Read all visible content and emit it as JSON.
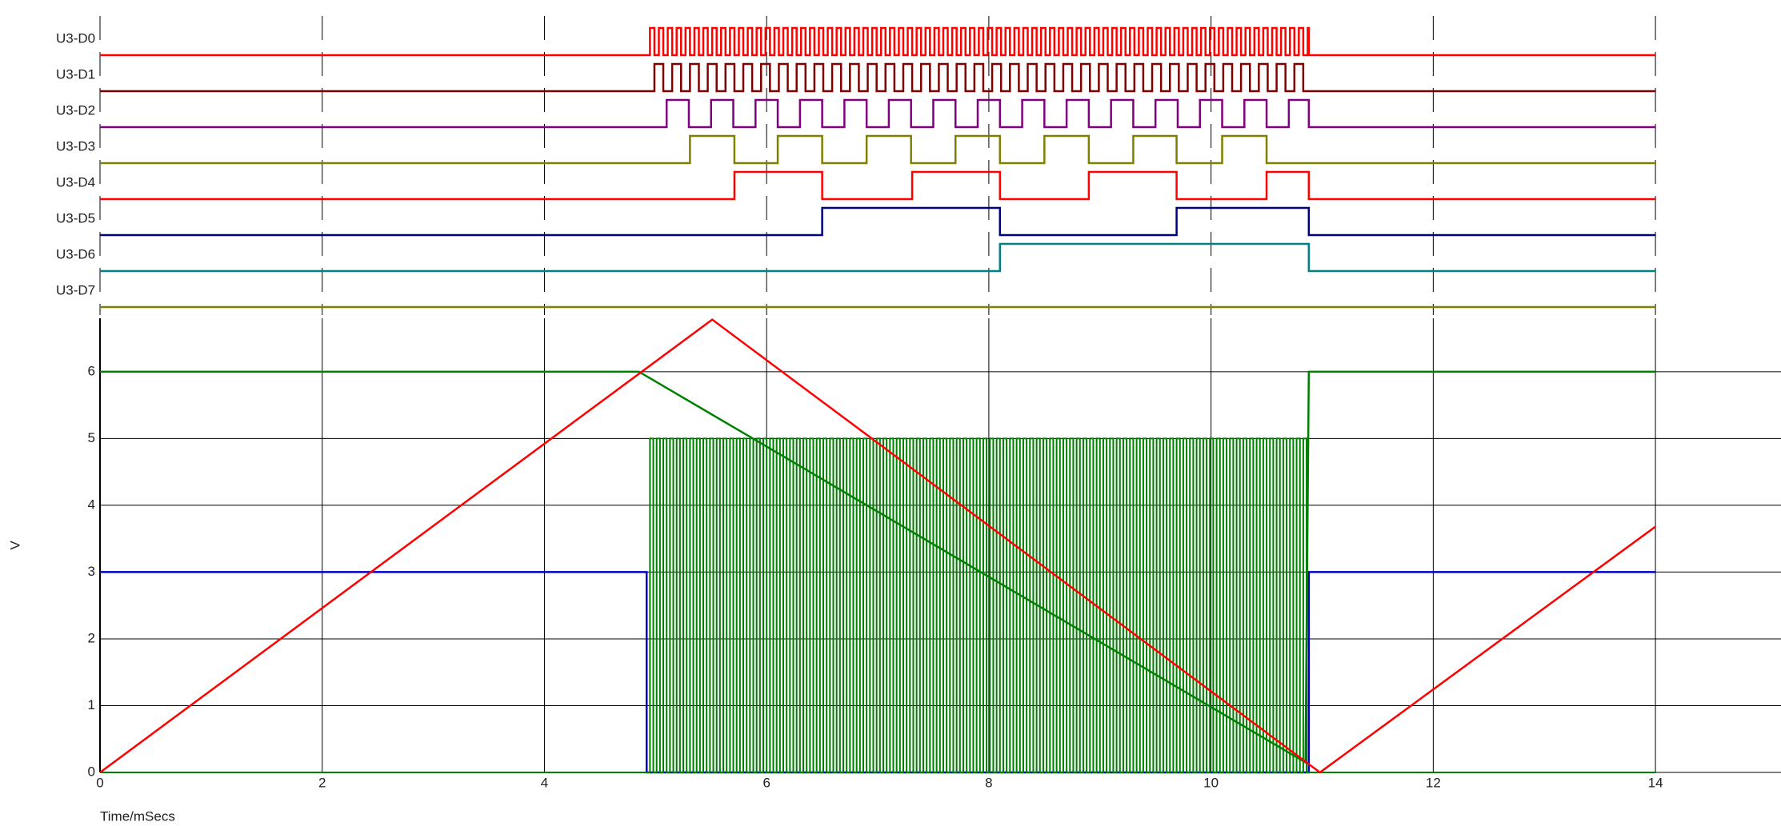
{
  "chart_data": {
    "type": "logic_analog",
    "x_label": "Time/mSecs",
    "y_label": "V",
    "xlim": [
      0,
      15.13
    ],
    "ylim": [
      0,
      6.8
    ],
    "xticks": [
      0,
      2,
      4,
      6,
      8,
      10,
      12,
      14
    ],
    "yticks": [
      0,
      1,
      2,
      3,
      4,
      5,
      6
    ],
    "grid": true,
    "trace_end": 14,
    "digital": [
      {
        "name": "U3-D0",
        "color": "#ff0000",
        "pulse": {
          "start": 4.95,
          "stop": 10.88,
          "period": 0.08
        }
      },
      {
        "name": "U3-D1",
        "color": "#800000",
        "pulse": {
          "start": 4.99,
          "stop": 10.88,
          "period": 0.16
        }
      },
      {
        "name": "U3-D2",
        "color": "#800080",
        "pulse": {
          "start": 5.1,
          "stop": 10.88,
          "period": 0.4
        }
      },
      {
        "name": "U3-D3",
        "color": "#808000",
        "edges": [
          5.31,
          5.71,
          6.1,
          6.5,
          6.9,
          7.3,
          7.7,
          8.1,
          8.5,
          8.9,
          9.3,
          9.69,
          10.1,
          10.5
        ]
      },
      {
        "name": "U3-D4",
        "color": "#ff0000",
        "edges": [
          5.71,
          6.5,
          7.31,
          8.1,
          8.9,
          9.69,
          10.5,
          10.88
        ]
      },
      {
        "name": "U3-D5",
        "color": "#000080",
        "edges": [
          6.5,
          8.1,
          9.69,
          10.88
        ]
      },
      {
        "name": "U3-D6",
        "color": "#008080",
        "edges": [
          8.1,
          10.88
        ]
      },
      {
        "name": "U3-D7",
        "color": "#808000",
        "edges": []
      }
    ],
    "series": [
      {
        "color": "#0000c8",
        "x": [
          0,
          4.92,
          4.92,
          10.88,
          10.88,
          14
        ],
        "values": [
          3,
          3,
          0,
          0,
          3,
          3
        ]
      },
      {
        "color": "#008000",
        "pulse": {
          "start": 4.95,
          "stop": 10.88,
          "period": 0.06,
          "high": 5,
          "low": 0
        }
      },
      {
        "color": "#008000",
        "x": [
          0,
          4.85,
          10.85,
          10.88,
          14
        ],
        "values": [
          6,
          6,
          0.15,
          6,
          6
        ]
      },
      {
        "color": "#ff0000",
        "x": [
          0,
          5.51,
          10.98,
          14
        ],
        "values": [
          0,
          6.78,
          0,
          3.68
        ]
      }
    ]
  }
}
